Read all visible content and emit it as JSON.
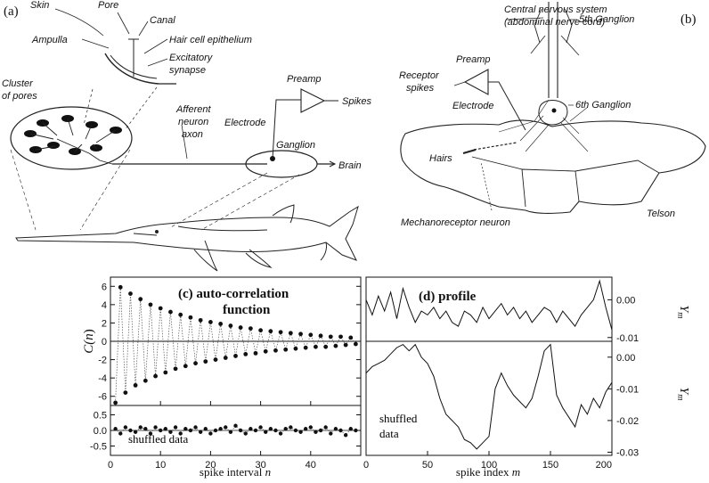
{
  "panel_a": {
    "letter": "(a)",
    "labels": {
      "skin": "Skin",
      "pore": "Pore",
      "canal": "Canal",
      "ampulla": "Ampulla",
      "hair_cell": "Hair cell epithelium",
      "excitatory_1": "Excitatory",
      "excitatory_2": "synapse",
      "cluster_1": "Cluster",
      "cluster_2": "of pores",
      "preamp": "Preamp",
      "spikes": "Spikes",
      "afferent_1": "Afferent",
      "afferent_2": "neuron",
      "afferent_3": "axon",
      "electrode": "Electrode",
      "ganglion": "Ganglion",
      "brain": "Brain"
    }
  },
  "panel_b": {
    "letter": "(b)",
    "labels": {
      "cns_1": "Central nervous system",
      "cns_2": "(abdominal nerve cord)",
      "ganglion5": "5th Ganglion",
      "preamp": "Preamp",
      "receptor_1": "Receptor",
      "receptor_2": "spikes",
      "electrode": "Electrode",
      "ganglion6": "6th Ganglion",
      "hairs": "Hairs",
      "mechano": "Mechanoreceptor neuron",
      "telson": "Telson"
    }
  },
  "panel_c": {
    "title_1": "(c) auto-correlation",
    "title_2": "function",
    "inset_label": "shuffled data",
    "xlabel_text": "spike interval ",
    "xlabel_var": "n",
    "ylabel_text": "C(",
    "ylabel_var": "n",
    "ylabel_close": ")"
  },
  "panel_d": {
    "title": "(d)  profile",
    "inset_label_1": "shuffled",
    "inset_label_2": "data",
    "xlabel_text": "spike index ",
    "xlabel_var": "m",
    "ylabel": "Y",
    "ylabel_sub": "m"
  },
  "chart_data": [
    {
      "type": "scatter",
      "panel": "(c) upper",
      "title": "(c) auto-correlation function",
      "xlabel": "spike interval n",
      "ylabel": "C(n)",
      "xlim": [
        0,
        50
      ],
      "ylim": [
        -7,
        7
      ],
      "xticks": [
        0,
        10,
        20,
        30,
        40
      ],
      "yticks": [
        -6,
        -4,
        -2,
        0,
        2,
        4,
        6
      ],
      "x": [
        1,
        2,
        3,
        4,
        5,
        6,
        7,
        8,
        9,
        10,
        11,
        12,
        13,
        14,
        15,
        16,
        17,
        18,
        19,
        20,
        21,
        22,
        23,
        24,
        25,
        26,
        27,
        28,
        29,
        30,
        31,
        32,
        33,
        34,
        35,
        36,
        37,
        38,
        39,
        40,
        41,
        42,
        43,
        44,
        45,
        46,
        47,
        48,
        49
      ],
      "y": [
        -6.7,
        5.9,
        -5.6,
        5.2,
        -4.8,
        4.6,
        -4.3,
        4.0,
        -3.8,
        3.6,
        -3.4,
        3.2,
        -3.0,
        2.9,
        -2.7,
        2.6,
        -2.4,
        2.3,
        -2.2,
        2.1,
        -2.0,
        1.9,
        -1.8,
        1.7,
        -1.6,
        1.5,
        -1.4,
        1.4,
        -1.3,
        1.2,
        -1.1,
        1.1,
        -1.0,
        1.0,
        -0.9,
        0.9,
        -0.8,
        0.8,
        -0.7,
        0.7,
        -0.6,
        0.6,
        -0.6,
        0.5,
        -0.5,
        0.5,
        -0.4,
        0.4,
        -0.3
      ]
    },
    {
      "type": "scatter",
      "panel": "(c) lower",
      "title": "shuffled data",
      "xlim": [
        0,
        50
      ],
      "ylim": [
        -0.8,
        0.8
      ],
      "xticks": [
        0,
        10,
        20,
        30,
        40
      ],
      "yticks": [
        -0.5,
        0.0,
        0.5
      ],
      "x": [
        1,
        2,
        3,
        4,
        5,
        6,
        7,
        8,
        9,
        10,
        11,
        12,
        13,
        14,
        15,
        16,
        17,
        18,
        19,
        20,
        21,
        22,
        23,
        24,
        25,
        26,
        27,
        28,
        29,
        30,
        31,
        32,
        33,
        34,
        35,
        36,
        37,
        38,
        39,
        40,
        41,
        42,
        43,
        44,
        45,
        46,
        47,
        48,
        49
      ],
      "y": [
        0.05,
        -0.1,
        0.1,
        0.0,
        -0.05,
        0.1,
        0.05,
        -0.1,
        0.1,
        0.0,
        0.05,
        -0.05,
        0.1,
        -0.1,
        0.05,
        0.0,
        0.1,
        -0.05,
        0.05,
        -0.1,
        0.0,
        0.05,
        0.1,
        -0.05,
        0.15,
        0.0,
        -0.1,
        0.05,
        0.0,
        0.1,
        -0.05,
        0.05,
        0.0,
        -0.1,
        0.05,
        0.1,
        0.0,
        -0.05,
        0.05,
        0.1,
        -0.05,
        0.0,
        0.1,
        -0.1,
        0.05,
        0.0,
        -0.15,
        0.05,
        0.0
      ]
    },
    {
      "type": "line",
      "panel": "(d) upper",
      "title": "(d) profile",
      "ylabel": "Y_m",
      "xlim": [
        0,
        200
      ],
      "ylim": [
        -0.011,
        0.006
      ],
      "yticks": [
        0.0,
        -0.01
      ],
      "x": [
        0,
        5,
        10,
        15,
        20,
        25,
        30,
        35,
        40,
        45,
        50,
        55,
        60,
        65,
        70,
        75,
        80,
        85,
        90,
        95,
        100,
        105,
        110,
        115,
        120,
        125,
        130,
        135,
        140,
        145,
        150,
        155,
        160,
        165,
        170,
        175,
        180,
        185,
        190,
        195,
        200
      ],
      "y": [
        0.0,
        -0.004,
        0.001,
        -0.003,
        0.002,
        -0.005,
        0.003,
        -0.002,
        -0.006,
        -0.003,
        -0.004,
        -0.002,
        -0.005,
        -0.003,
        -0.006,
        -0.007,
        -0.003,
        -0.004,
        -0.006,
        -0.002,
        -0.005,
        -0.003,
        -0.001,
        -0.004,
        -0.002,
        -0.005,
        -0.003,
        -0.006,
        -0.004,
        -0.002,
        -0.003,
        -0.006,
        -0.003,
        -0.005,
        -0.007,
        -0.004,
        -0.002,
        0.0,
        0.005,
        -0.002,
        -0.008
      ]
    },
    {
      "type": "line",
      "panel": "(d) lower",
      "title": "shuffled data",
      "xlabel": "spike index m",
      "ylabel": "Y_m",
      "xlim": [
        0,
        200
      ],
      "ylim": [
        -0.031,
        0.005
      ],
      "xticks": [
        0,
        50,
        100,
        150,
        200
      ],
      "yticks": [
        0.0,
        -0.01,
        -0.02,
        -0.03
      ],
      "x": [
        0,
        5,
        10,
        15,
        20,
        25,
        30,
        35,
        40,
        45,
        50,
        55,
        60,
        65,
        70,
        75,
        80,
        85,
        90,
        95,
        100,
        105,
        110,
        115,
        120,
        125,
        130,
        135,
        140,
        145,
        150,
        155,
        160,
        165,
        170,
        175,
        180,
        185,
        190,
        195,
        200
      ],
      "y": [
        -0.005,
        -0.003,
        -0.002,
        -0.001,
        0.001,
        0.003,
        0.004,
        0.002,
        0.004,
        0.0,
        -0.002,
        -0.006,
        -0.013,
        -0.018,
        -0.02,
        -0.022,
        -0.026,
        -0.027,
        -0.029,
        -0.027,
        -0.025,
        -0.01,
        -0.005,
        -0.009,
        -0.012,
        -0.014,
        -0.016,
        -0.013,
        -0.006,
        0.002,
        0.004,
        -0.012,
        -0.016,
        -0.019,
        -0.022,
        -0.015,
        -0.018,
        -0.013,
        -0.016,
        -0.011,
        -0.008
      ]
    }
  ]
}
